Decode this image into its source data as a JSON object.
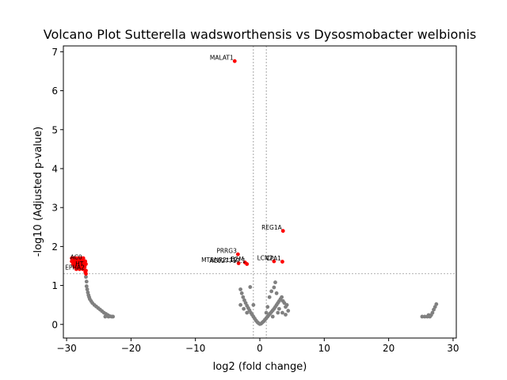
{
  "chart_data": {
    "type": "scatter",
    "title": "Volcano Plot Sutterella wadsworthensis vs Dysosmobacter welbionis",
    "xlabel": "log2 (fold change)",
    "ylabel": "-log10 (Adjusted p-value)",
    "xlim": [
      -30.5,
      30.5
    ],
    "ylim": [
      -0.35,
      7.15
    ],
    "xticks": [
      -30,
      -20,
      -10,
      0,
      10,
      20,
      30
    ],
    "xtick_labels": [
      "−30",
      "−20",
      "−10",
      "0",
      "10",
      "20",
      "30"
    ],
    "yticks": [
      0,
      1,
      2,
      3,
      4,
      5,
      6,
      7
    ],
    "ytick_labels": [
      "0",
      "1",
      "2",
      "3",
      "4",
      "5",
      "6",
      "7"
    ],
    "grid": false,
    "threshold_lines": {
      "vertical": [
        -1,
        1
      ],
      "horizontal": [
        1.3
      ]
    },
    "colors": {
      "significant": "#ff0000",
      "nonsignificant": "#808080",
      "threshold": "#808080"
    },
    "significant_points": [
      {
        "label": "MALAT1",
        "x": -3.9,
        "y": 6.76
      },
      {
        "label": "REG1A",
        "x": 3.6,
        "y": 2.4
      },
      {
        "label": "PRRG3",
        "x": -3.4,
        "y": 1.8
      },
      {
        "label": "MTRNR2L12",
        "x": -3.3,
        "y": 1.57
      },
      {
        "label": "B2M",
        "x": -2.3,
        "y": 1.59
      },
      {
        "label": "AC027717.1",
        "x": -2.0,
        "y": 1.55
      },
      {
        "label": "LCN2",
        "x": 2.2,
        "y": 1.62
      },
      {
        "label": "CPA1",
        "x": 3.5,
        "y": 1.61
      },
      {
        "label": "AC0",
        "x": -27.4,
        "y": 1.64
      },
      {
        "label": "HT",
        "x": -27.2,
        "y": 1.47
      },
      {
        "label": "EPHA2",
        "x": -27.0,
        "y": 1.38
      },
      {
        "x": -29.2,
        "y": 1.7
      },
      {
        "x": -28.9,
        "y": 1.7
      },
      {
        "x": -28.6,
        "y": 1.7
      },
      {
        "x": -28.3,
        "y": 1.7
      },
      {
        "x": -28.0,
        "y": 1.7
      },
      {
        "x": -27.7,
        "y": 1.7
      },
      {
        "x": -27.4,
        "y": 1.7
      },
      {
        "x": -29.2,
        "y": 1.62
      },
      {
        "x": -28.9,
        "y": 1.62
      },
      {
        "x": -28.6,
        "y": 1.62
      },
      {
        "x": -28.3,
        "y": 1.62
      },
      {
        "x": -28.0,
        "y": 1.62
      },
      {
        "x": -27.7,
        "y": 1.62
      },
      {
        "x": -27.4,
        "y": 1.62
      },
      {
        "x": -27.1,
        "y": 1.62
      },
      {
        "x": -29.0,
        "y": 1.55
      },
      {
        "x": -28.6,
        "y": 1.55
      },
      {
        "x": -28.2,
        "y": 1.55
      },
      {
        "x": -27.8,
        "y": 1.55
      },
      {
        "x": -27.4,
        "y": 1.55
      },
      {
        "x": -27.0,
        "y": 1.55
      },
      {
        "x": -28.8,
        "y": 1.48
      },
      {
        "x": -28.4,
        "y": 1.48
      },
      {
        "x": -28.0,
        "y": 1.48
      },
      {
        "x": -27.6,
        "y": 1.48
      },
      {
        "x": -27.2,
        "y": 1.5
      },
      {
        "x": -28.5,
        "y": 1.42
      },
      {
        "x": -28.0,
        "y": 1.42
      },
      {
        "x": -27.5,
        "y": 1.42
      },
      {
        "x": -27.1,
        "y": 1.35
      },
      {
        "x": -27.0,
        "y": 1.3
      }
    ],
    "nonsignificant_points": [
      {
        "x": -27.0,
        "y": 1.22
      },
      {
        "x": -26.9,
        "y": 1.1
      },
      {
        "x": -26.9,
        "y": 0.98
      },
      {
        "x": -26.8,
        "y": 0.9
      },
      {
        "x": -26.7,
        "y": 0.82
      },
      {
        "x": -26.6,
        "y": 0.75
      },
      {
        "x": -26.5,
        "y": 0.7
      },
      {
        "x": -26.4,
        "y": 0.65
      },
      {
        "x": -26.2,
        "y": 0.6
      },
      {
        "x": -26.0,
        "y": 0.55
      },
      {
        "x": -25.7,
        "y": 0.5
      },
      {
        "x": -25.4,
        "y": 0.46
      },
      {
        "x": -25.1,
        "y": 0.42
      },
      {
        "x": -24.8,
        "y": 0.38
      },
      {
        "x": -24.5,
        "y": 0.34
      },
      {
        "x": -24.2,
        "y": 0.3
      },
      {
        "x": -23.9,
        "y": 0.27
      },
      {
        "x": -23.6,
        "y": 0.24
      },
      {
        "x": -23.3,
        "y": 0.21
      },
      {
        "x": -23.0,
        "y": 0.2
      },
      {
        "x": -22.8,
        "y": 0.2
      },
      {
        "x": -24.0,
        "y": 0.2
      },
      {
        "x": -23.5,
        "y": 0.2
      },
      {
        "x": -3.0,
        "y": 0.9
      },
      {
        "x": -2.8,
        "y": 0.8
      },
      {
        "x": -2.6,
        "y": 0.7
      },
      {
        "x": -2.4,
        "y": 0.62
      },
      {
        "x": -2.2,
        "y": 0.55
      },
      {
        "x": -2.0,
        "y": 0.48
      },
      {
        "x": -1.8,
        "y": 0.42
      },
      {
        "x": -1.6,
        "y": 0.36
      },
      {
        "x": -1.4,
        "y": 0.3
      },
      {
        "x": -1.2,
        "y": 0.25
      },
      {
        "x": -1.0,
        "y": 0.2
      },
      {
        "x": -0.8,
        "y": 0.15
      },
      {
        "x": -0.6,
        "y": 0.1
      },
      {
        "x": -0.4,
        "y": 0.06
      },
      {
        "x": -0.2,
        "y": 0.03
      },
      {
        "x": 0.0,
        "y": 0.01
      },
      {
        "x": 0.2,
        "y": 0.02
      },
      {
        "x": 0.4,
        "y": 0.05
      },
      {
        "x": -1.5,
        "y": 0.96
      },
      {
        "x": -2.5,
        "y": 0.4
      },
      {
        "x": -2.0,
        "y": 0.3
      },
      {
        "x": -1.0,
        "y": 0.5
      },
      {
        "x": -3.0,
        "y": 0.5
      },
      {
        "x": 0.6,
        "y": 0.08
      },
      {
        "x": 0.8,
        "y": 0.12
      },
      {
        "x": 1.0,
        "y": 0.16
      },
      {
        "x": 1.2,
        "y": 0.2
      },
      {
        "x": 1.4,
        "y": 0.24
      },
      {
        "x": 1.6,
        "y": 0.28
      },
      {
        "x": 1.8,
        "y": 0.32
      },
      {
        "x": 2.0,
        "y": 0.36
      },
      {
        "x": 2.2,
        "y": 0.4
      },
      {
        "x": 2.4,
        "y": 0.45
      },
      {
        "x": 2.6,
        "y": 0.5
      },
      {
        "x": 2.8,
        "y": 0.55
      },
      {
        "x": 3.0,
        "y": 0.6
      },
      {
        "x": 3.2,
        "y": 0.65
      },
      {
        "x": 3.4,
        "y": 0.7
      },
      {
        "x": 3.6,
        "y": 0.6
      },
      {
        "x": 3.8,
        "y": 0.55
      },
      {
        "x": 4.0,
        "y": 0.45
      },
      {
        "x": 4.2,
        "y": 0.5
      },
      {
        "x": 4.4,
        "y": 0.35
      },
      {
        "x": 2.4,
        "y": 1.08
      },
      {
        "x": 2.2,
        "y": 0.95
      },
      {
        "x": 1.8,
        "y": 0.85
      },
      {
        "x": 2.6,
        "y": 0.8
      },
      {
        "x": 1.5,
        "y": 0.7
      },
      {
        "x": 3.0,
        "y": 0.4
      },
      {
        "x": 1.0,
        "y": 0.3
      },
      {
        "x": 2.0,
        "y": 0.2
      },
      {
        "x": 3.5,
        "y": 0.3
      },
      {
        "x": 4.0,
        "y": 0.25
      },
      {
        "x": 1.2,
        "y": 0.45
      },
      {
        "x": 2.8,
        "y": 0.3
      },
      {
        "x": 25.2,
        "y": 0.2
      },
      {
        "x": 25.6,
        "y": 0.2
      },
      {
        "x": 26.0,
        "y": 0.2
      },
      {
        "x": 26.2,
        "y": 0.24
      },
      {
        "x": 26.4,
        "y": 0.2
      },
      {
        "x": 26.6,
        "y": 0.24
      },
      {
        "x": 26.8,
        "y": 0.3
      },
      {
        "x": 27.0,
        "y": 0.38
      },
      {
        "x": 27.2,
        "y": 0.45
      },
      {
        "x": 27.4,
        "y": 0.52
      }
    ]
  }
}
